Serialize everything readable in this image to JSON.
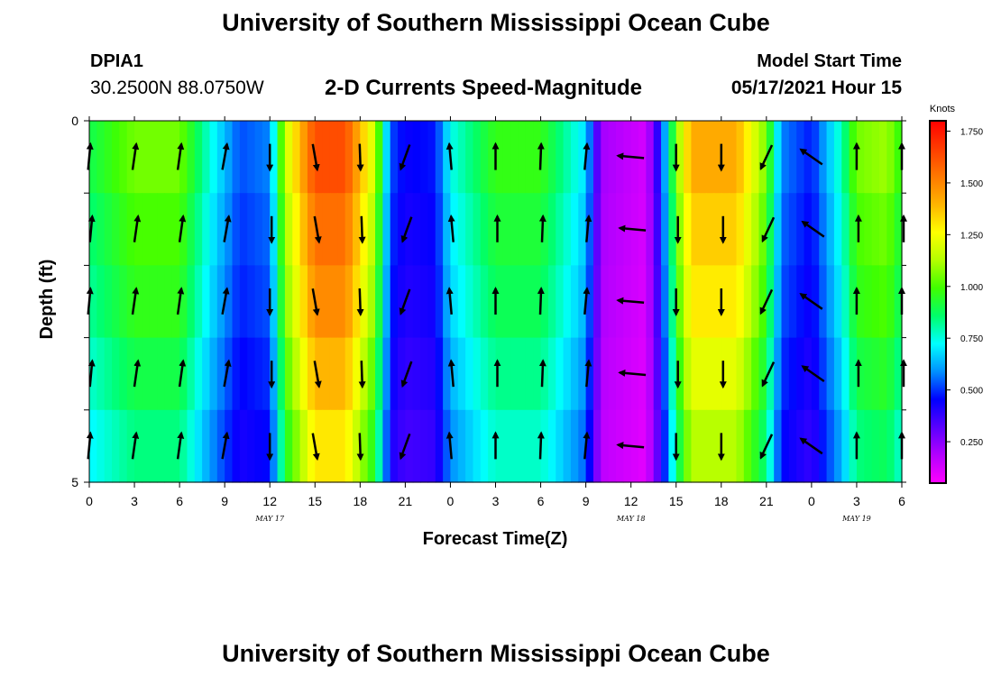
{
  "page": {
    "title_top": "University of Southern Mississippi Ocean Cube",
    "title_bottom": "University of Southern Mississippi Ocean Cube",
    "station_id": "DPIA1",
    "coordinates": "30.2500N  88.0750W",
    "model_start_label": "Model Start Time",
    "model_start_value": "05/17/2021 Hour 15"
  },
  "colors": {
    "arrow": "#000000",
    "palette": [
      "#ff00ff",
      "#b400ff",
      "#5a00ff",
      "#0000ff",
      "#0090ff",
      "#00ffff",
      "#00ff6a",
      "#40ff00",
      "#b4ff00",
      "#ffff00",
      "#ffb400",
      "#ff7800",
      "#ff3c00",
      "#ff0000"
    ]
  },
  "chart_data": {
    "type": "heatmap",
    "title": "2-D Currents Speed-Magnitude",
    "xlabel": "Forecast Time(Z)",
    "ylabel": "Depth (ft)",
    "x_range": [
      0,
      54
    ],
    "y_range": [
      0,
      5
    ],
    "x_ticks": [
      0,
      3,
      6,
      9,
      12,
      15,
      18,
      21,
      24,
      27,
      30,
      33,
      36,
      39,
      42,
      45,
      48,
      51,
      54
    ],
    "x_tick_labels": [
      "0",
      "3",
      "6",
      "9",
      "12",
      "15",
      "18",
      "21",
      "0",
      "3",
      "6",
      "9",
      "12",
      "15",
      "18",
      "21",
      "0",
      "3",
      "6"
    ],
    "y_tick_labels": [
      "0",
      "5"
    ],
    "date_labels": [
      {
        "x": 12,
        "text": "MAY 17"
      },
      {
        "x": 36,
        "text": "MAY 18"
      },
      {
        "x": 51,
        "text": "MAY 19"
      }
    ],
    "colorbar": {
      "title": "Knots",
      "min": 0.05,
      "max": 1.8,
      "ticks": [
        0.25,
        0.5,
        0.75,
        1.0,
        1.25,
        1.5,
        1.75
      ],
      "tick_labels": [
        "0.250",
        "0.500",
        "0.750",
        "1.000",
        "1.250",
        "1.500",
        "1.750"
      ]
    },
    "speed_by_hour": [
      {
        "hour": 0,
        "speed": 0.85
      },
      {
        "hour": 3,
        "speed": 1.0
      },
      {
        "hour": 6,
        "speed": 1.0
      },
      {
        "hour": 8,
        "speed": 0.72
      },
      {
        "hour": 10,
        "speed": 0.5
      },
      {
        "hour": 12,
        "speed": 0.55
      },
      {
        "hour": 13,
        "speed": 1.1
      },
      {
        "hour": 15,
        "speed": 1.55
      },
      {
        "hour": 17,
        "speed": 1.55
      },
      {
        "hour": 19,
        "speed": 1.1
      },
      {
        "hour": 20,
        "speed": 0.5
      },
      {
        "hour": 21,
        "speed": 0.42
      },
      {
        "hour": 23,
        "speed": 0.45
      },
      {
        "hour": 24,
        "speed": 0.7
      },
      {
        "hour": 27,
        "speed": 0.92
      },
      {
        "hour": 30,
        "speed": 0.92
      },
      {
        "hour": 33,
        "speed": 0.65
      },
      {
        "hour": 34,
        "speed": 0.2
      },
      {
        "hour": 37,
        "speed": 0.12
      },
      {
        "hour": 38,
        "speed": 0.45
      },
      {
        "hour": 39,
        "speed": 1.0
      },
      {
        "hour": 40,
        "speed": 1.35
      },
      {
        "hour": 43,
        "speed": 1.35
      },
      {
        "hour": 45,
        "speed": 1.0
      },
      {
        "hour": 46,
        "speed": 0.55
      },
      {
        "hour": 48,
        "speed": 0.45
      },
      {
        "hour": 50,
        "speed": 0.75
      },
      {
        "hour": 51,
        "speed": 1.0
      },
      {
        "hour": 53,
        "speed": 1.05
      },
      {
        "hour": 54,
        "speed": 0.9
      }
    ],
    "depth_factors": [
      1.05,
      1.0,
      0.96,
      0.9,
      0.84
    ],
    "vector_hours": [
      0,
      3,
      6,
      9,
      12,
      15,
      18,
      21,
      24,
      27,
      30,
      33,
      36,
      39,
      42,
      45,
      48,
      51,
      54
    ],
    "vector_directions_deg": [
      5,
      8,
      8,
      10,
      180,
      170,
      178,
      200,
      355,
      0,
      2,
      5,
      275,
      180,
      180,
      205,
      305,
      0,
      0
    ],
    "vector_depths": [
      0.5,
      1.5,
      2.5,
      3.5,
      4.5
    ]
  }
}
